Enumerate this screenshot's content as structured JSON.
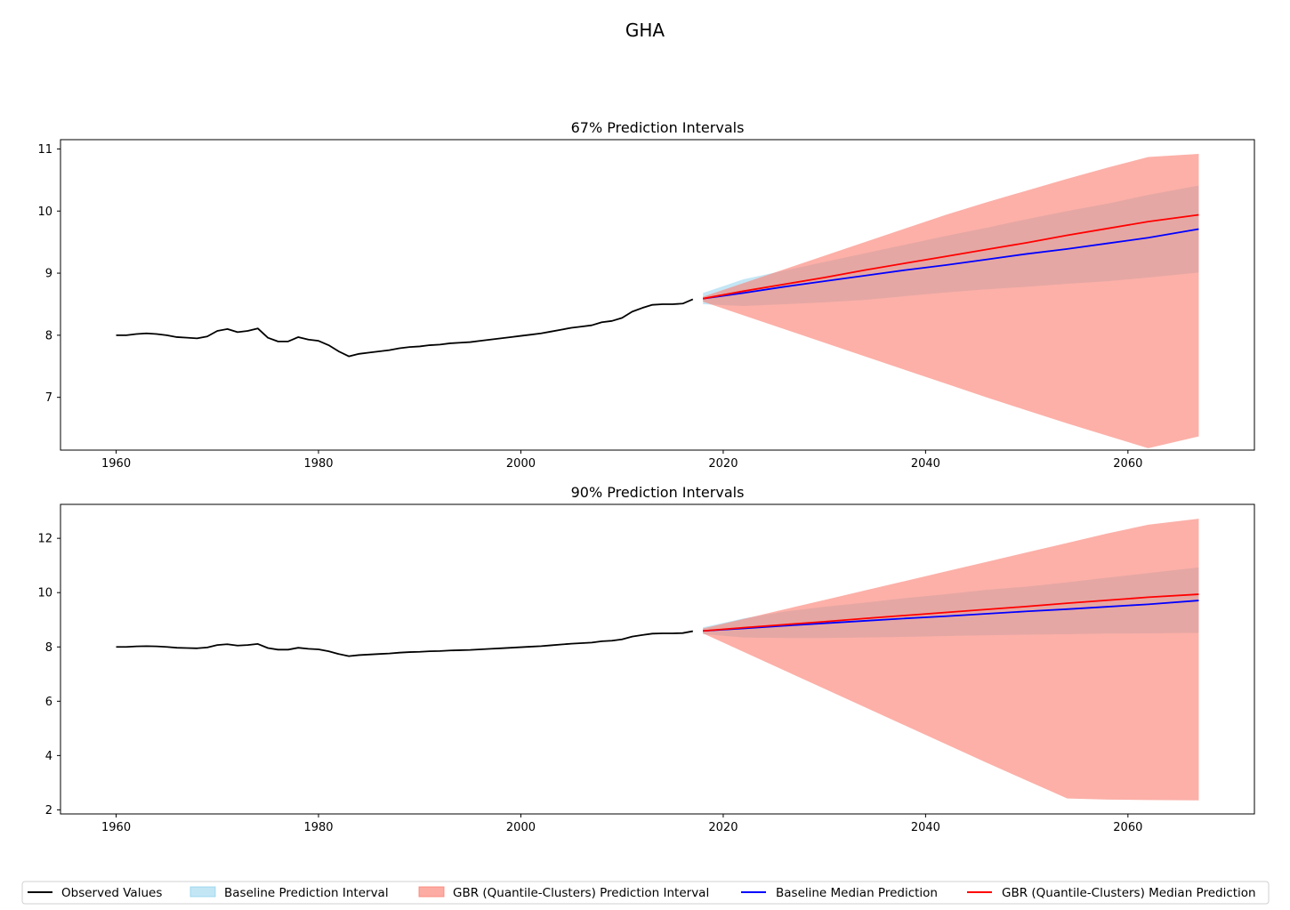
{
  "figure": {
    "title": "GHA"
  },
  "legend": {
    "placement": "bottom-center",
    "items": [
      {
        "label": "Observed Values",
        "kind": "line",
        "color": "#000000"
      },
      {
        "label": "Baseline Prediction Interval",
        "kind": "patch",
        "color": "#87ceeb"
      },
      {
        "label": "GBR (Quantile-Clusters) Prediction Interval",
        "kind": "patch",
        "color": "#fa8072"
      },
      {
        "label": "Baseline Median Prediction",
        "kind": "line",
        "color": "#0000ff"
      },
      {
        "label": "GBR (Quantile-Clusters) Median Prediction",
        "kind": "line",
        "color": "#ff0000"
      }
    ]
  },
  "colors": {
    "observed": "#000000",
    "baseline_band": "#87ceeb",
    "gbr_band": "#fa8072",
    "baseline_median": "#0000ff",
    "gbr_median": "#ff0000"
  },
  "chart_data": [
    {
      "type": "line",
      "title": "67% Prediction Intervals",
      "xlim": [
        1954.5,
        2072.5
      ],
      "ylim": [
        6.15,
        11.15
      ],
      "xticks": [
        1960,
        1980,
        2000,
        2020,
        2040,
        2060
      ],
      "yticks": [
        7,
        8,
        9,
        10,
        11
      ],
      "grid": false,
      "observed": {
        "x": [
          1960,
          1961,
          1962,
          1963,
          1964,
          1965,
          1966,
          1967,
          1968,
          1969,
          1970,
          1971,
          1972,
          1973,
          1974,
          1975,
          1976,
          1977,
          1978,
          1979,
          1980,
          1981,
          1982,
          1983,
          1984,
          1985,
          1986,
          1987,
          1988,
          1989,
          1990,
          1991,
          1992,
          1993,
          1994,
          1995,
          1996,
          1997,
          1998,
          1999,
          2000,
          2001,
          2002,
          2003,
          2004,
          2005,
          2006,
          2007,
          2008,
          2009,
          2010,
          2011,
          2012,
          2013,
          2014,
          2015,
          2016,
          2017
        ],
        "y": [
          8.0,
          8.0,
          8.02,
          8.03,
          8.02,
          8.0,
          7.97,
          7.96,
          7.95,
          7.98,
          8.07,
          8.1,
          8.05,
          8.07,
          8.11,
          7.96,
          7.9,
          7.9,
          7.97,
          7.93,
          7.91,
          7.84,
          7.74,
          7.66,
          7.7,
          7.72,
          7.74,
          7.76,
          7.79,
          7.81,
          7.82,
          7.84,
          7.85,
          7.87,
          7.88,
          7.89,
          7.91,
          7.93,
          7.95,
          7.97,
          7.99,
          8.01,
          8.03,
          8.06,
          8.09,
          8.12,
          8.14,
          8.16,
          8.21,
          8.23,
          8.28,
          8.38,
          8.44,
          8.49,
          8.5,
          8.5,
          8.51,
          8.58
        ]
      },
      "forecast_x": [
        2018,
        2022,
        2026,
        2030,
        2034,
        2038,
        2042,
        2046,
        2050,
        2054,
        2058,
        2062,
        2067
      ],
      "baseline_median": [
        8.59,
        8.68,
        8.78,
        8.87,
        8.96,
        9.05,
        9.13,
        9.22,
        9.31,
        9.39,
        9.48,
        9.57,
        9.71
      ],
      "baseline_lower": [
        8.5,
        8.47,
        8.5,
        8.53,
        8.57,
        8.63,
        8.69,
        8.74,
        8.78,
        8.83,
        8.87,
        8.93,
        9.01
      ],
      "baseline_upper": [
        8.68,
        8.9,
        9.04,
        9.18,
        9.32,
        9.46,
        9.6,
        9.73,
        9.87,
        10.0,
        10.12,
        10.26,
        10.41
      ],
      "gbr_median": [
        8.59,
        8.71,
        8.82,
        8.93,
        9.05,
        9.16,
        9.27,
        9.38,
        9.49,
        9.61,
        9.72,
        9.83,
        9.94
      ],
      "gbr_lower": [
        8.54,
        8.32,
        8.1,
        7.88,
        7.66,
        7.44,
        7.22,
        7.0,
        6.79,
        6.58,
        6.38,
        6.18,
        6.37
      ],
      "gbr_upper": [
        8.62,
        8.84,
        9.06,
        9.28,
        9.5,
        9.72,
        9.94,
        10.14,
        10.33,
        10.52,
        10.7,
        10.87,
        10.92
      ]
    },
    {
      "type": "line",
      "title": "90% Prediction Intervals",
      "xlim": [
        1954.5,
        2072.5
      ],
      "ylim": [
        1.85,
        13.25
      ],
      "xticks": [
        1960,
        1980,
        2000,
        2020,
        2040,
        2060
      ],
      "yticks": [
        2,
        4,
        6,
        8,
        10,
        12
      ],
      "grid": false,
      "observed": {
        "x": [
          1960,
          1961,
          1962,
          1963,
          1964,
          1965,
          1966,
          1967,
          1968,
          1969,
          1970,
          1971,
          1972,
          1973,
          1974,
          1975,
          1976,
          1977,
          1978,
          1979,
          1980,
          1981,
          1982,
          1983,
          1984,
          1985,
          1986,
          1987,
          1988,
          1989,
          1990,
          1991,
          1992,
          1993,
          1994,
          1995,
          1996,
          1997,
          1998,
          1999,
          2000,
          2001,
          2002,
          2003,
          2004,
          2005,
          2006,
          2007,
          2008,
          2009,
          2010,
          2011,
          2012,
          2013,
          2014,
          2015,
          2016,
          2017
        ],
        "y": [
          8.0,
          8.0,
          8.02,
          8.03,
          8.02,
          8.0,
          7.97,
          7.96,
          7.95,
          7.98,
          8.07,
          8.1,
          8.05,
          8.07,
          8.11,
          7.96,
          7.9,
          7.9,
          7.97,
          7.93,
          7.91,
          7.84,
          7.74,
          7.66,
          7.7,
          7.72,
          7.74,
          7.76,
          7.79,
          7.81,
          7.82,
          7.84,
          7.85,
          7.87,
          7.88,
          7.89,
          7.91,
          7.93,
          7.95,
          7.97,
          7.99,
          8.01,
          8.03,
          8.06,
          8.09,
          8.12,
          8.14,
          8.16,
          8.21,
          8.23,
          8.28,
          8.38,
          8.44,
          8.49,
          8.5,
          8.5,
          8.51,
          8.58
        ]
      },
      "forecast_x": [
        2018,
        2022,
        2026,
        2030,
        2034,
        2038,
        2042,
        2046,
        2050,
        2054,
        2058,
        2062,
        2067
      ],
      "baseline_median": [
        8.59,
        8.68,
        8.78,
        8.87,
        8.96,
        9.05,
        9.13,
        9.22,
        9.31,
        9.39,
        9.48,
        9.57,
        9.71
      ],
      "baseline_lower": [
        8.47,
        8.35,
        8.33,
        8.33,
        8.35,
        8.37,
        8.4,
        8.43,
        8.45,
        8.47,
        8.49,
        8.5,
        8.52
      ],
      "baseline_upper": [
        8.72,
        9.05,
        9.3,
        9.48,
        9.63,
        9.8,
        9.94,
        10.1,
        10.22,
        10.38,
        10.55,
        10.72,
        10.93
      ],
      "gbr_median": [
        8.59,
        8.71,
        8.82,
        8.93,
        9.05,
        9.16,
        9.27,
        9.38,
        9.49,
        9.61,
        9.72,
        9.83,
        9.94
      ],
      "gbr_lower": [
        8.5,
        7.82,
        7.14,
        6.46,
        5.78,
        5.1,
        4.42,
        3.74,
        3.08,
        2.42,
        2.38,
        2.36,
        2.35
      ],
      "gbr_upper": [
        8.68,
        9.03,
        9.38,
        9.73,
        10.08,
        10.43,
        10.78,
        11.13,
        11.48,
        11.83,
        12.18,
        12.5,
        12.72
      ]
    }
  ]
}
